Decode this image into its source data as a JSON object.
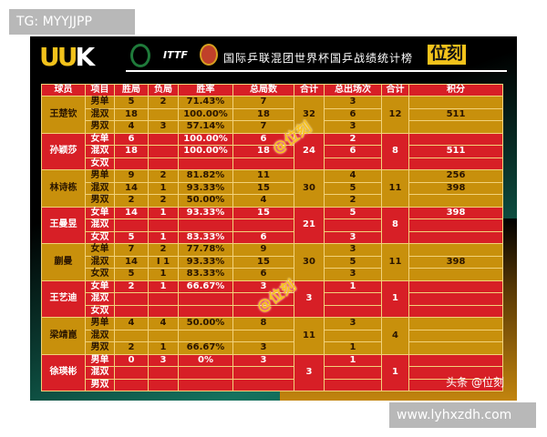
{
  "overlay_top": "TG: MYYJJPP",
  "overlay_bottom": "www.lyhxzdh.com",
  "banner": {
    "logo": "UUK",
    "title": "国际乒联混团世界杯国乒战绩统计榜",
    "brand": "位刻"
  },
  "watermark": "@位刻",
  "credit": "头条 @位刻",
  "colors": {
    "gold": "#c8900c",
    "red": "#d71f26"
  },
  "headers": [
    "球员",
    "项目",
    "胜局",
    "负局",
    "胜率",
    "总局数",
    "合计",
    "总出场次",
    "合计",
    "积分"
  ],
  "players": [
    {
      "name": "王楚钦",
      "color": "gold",
      "total_games": "32",
      "total_apps": "12",
      "rows": [
        {
          "event": "男单",
          "w": "5",
          "l": "2",
          "rate": "71.43%",
          "games": "7",
          "apps": "3",
          "pts": ""
        },
        {
          "event": "混双",
          "w": "18",
          "l": "",
          "rate": "100.00%",
          "games": "18",
          "apps": "6",
          "pts": "511"
        },
        {
          "event": "男双",
          "w": "4",
          "l": "3",
          "rate": "57.14%",
          "games": "7",
          "apps": "3",
          "pts": ""
        }
      ]
    },
    {
      "name": "孙颖莎",
      "color": "red",
      "total_games": "24",
      "total_apps": "8",
      "rows": [
        {
          "event": "女单",
          "w": "6",
          "l": "",
          "rate": "100.00%",
          "games": "6",
          "apps": "2",
          "pts": ""
        },
        {
          "event": "混双",
          "w": "18",
          "l": "",
          "rate": "100.00%",
          "games": "18",
          "apps": "6",
          "pts": "511"
        },
        {
          "event": "女双",
          "w": "",
          "l": "",
          "rate": "",
          "games": "",
          "apps": "",
          "pts": ""
        }
      ]
    },
    {
      "name": "林诗栋",
      "color": "gold",
      "total_games": "30",
      "total_apps": "11",
      "rows": [
        {
          "event": "男单",
          "w": "9",
          "l": "2",
          "rate": "81.82%",
          "games": "11",
          "apps": "4",
          "pts": "256"
        },
        {
          "event": "混双",
          "w": "14",
          "l": "1",
          "rate": "93.33%",
          "games": "15",
          "apps": "5",
          "pts": "398"
        },
        {
          "event": "男双",
          "w": "2",
          "l": "2",
          "rate": "50.00%",
          "games": "4",
          "apps": "2",
          "pts": ""
        }
      ]
    },
    {
      "name": "王曼昱",
      "color": "red",
      "total_games": "21",
      "total_apps": "8",
      "rows": [
        {
          "event": "女单",
          "w": "14",
          "l": "1",
          "rate": "93.33%",
          "games": "15",
          "apps": "5",
          "pts": "398"
        },
        {
          "event": "混双",
          "w": "",
          "l": "",
          "rate": "",
          "games": "",
          "apps": "",
          "pts": ""
        },
        {
          "event": "女双",
          "w": "5",
          "l": "1",
          "rate": "83.33%",
          "games": "6",
          "apps": "3",
          "pts": ""
        }
      ]
    },
    {
      "name": "蒯曼",
      "color": "gold",
      "total_games": "30",
      "total_apps": "11",
      "rows": [
        {
          "event": "女单",
          "w": "7",
          "l": "2",
          "rate": "77.78%",
          "games": "9",
          "apps": "3",
          "pts": ""
        },
        {
          "event": "混双",
          "w": "14",
          "l": "I 1",
          "rate": "93.33%",
          "games": "15",
          "apps": "5",
          "pts": "398"
        },
        {
          "event": "女双",
          "w": "5",
          "l": "1",
          "rate": "83.33%",
          "games": "6",
          "apps": "3",
          "pts": ""
        }
      ]
    },
    {
      "name": "王艺迪",
      "color": "red",
      "total_games": "3",
      "total_apps": "1",
      "rows": [
        {
          "event": "女单",
          "w": "2",
          "l": "1",
          "rate": "66.67%",
          "games": "3",
          "apps": "1",
          "pts": ""
        },
        {
          "event": "混双",
          "w": "",
          "l": "",
          "rate": "",
          "games": "",
          "apps": "",
          "pts": ""
        },
        {
          "event": "女双",
          "w": "",
          "l": "",
          "rate": "",
          "games": "",
          "apps": "",
          "pts": ""
        }
      ]
    },
    {
      "name": "梁靖崑",
      "color": "gold",
      "total_games": "11",
      "total_apps": "4",
      "rows": [
        {
          "event": "男单",
          "w": "4",
          "l": "4",
          "rate": "50.00%",
          "games": "8",
          "apps": "3",
          "pts": ""
        },
        {
          "event": "混双",
          "w": "",
          "l": "",
          "rate": "",
          "games": "",
          "apps": "",
          "pts": ""
        },
        {
          "event": "男双",
          "w": "2",
          "l": "1",
          "rate": "66.67%",
          "games": "3",
          "apps": "1",
          "pts": ""
        }
      ]
    },
    {
      "name": "徐瑛彬",
      "color": "red",
      "total_games": "3",
      "total_apps": "1",
      "rows": [
        {
          "event": "男单",
          "w": "0",
          "l": "3",
          "rate": "0%",
          "games": "3",
          "apps": "1",
          "pts": ""
        },
        {
          "event": "混双",
          "w": "",
          "l": "",
          "rate": "",
          "games": "",
          "apps": "",
          "pts": ""
        },
        {
          "event": "男双",
          "w": "",
          "l": "",
          "rate": "",
          "games": "",
          "apps": "",
          "pts": ""
        }
      ]
    }
  ]
}
